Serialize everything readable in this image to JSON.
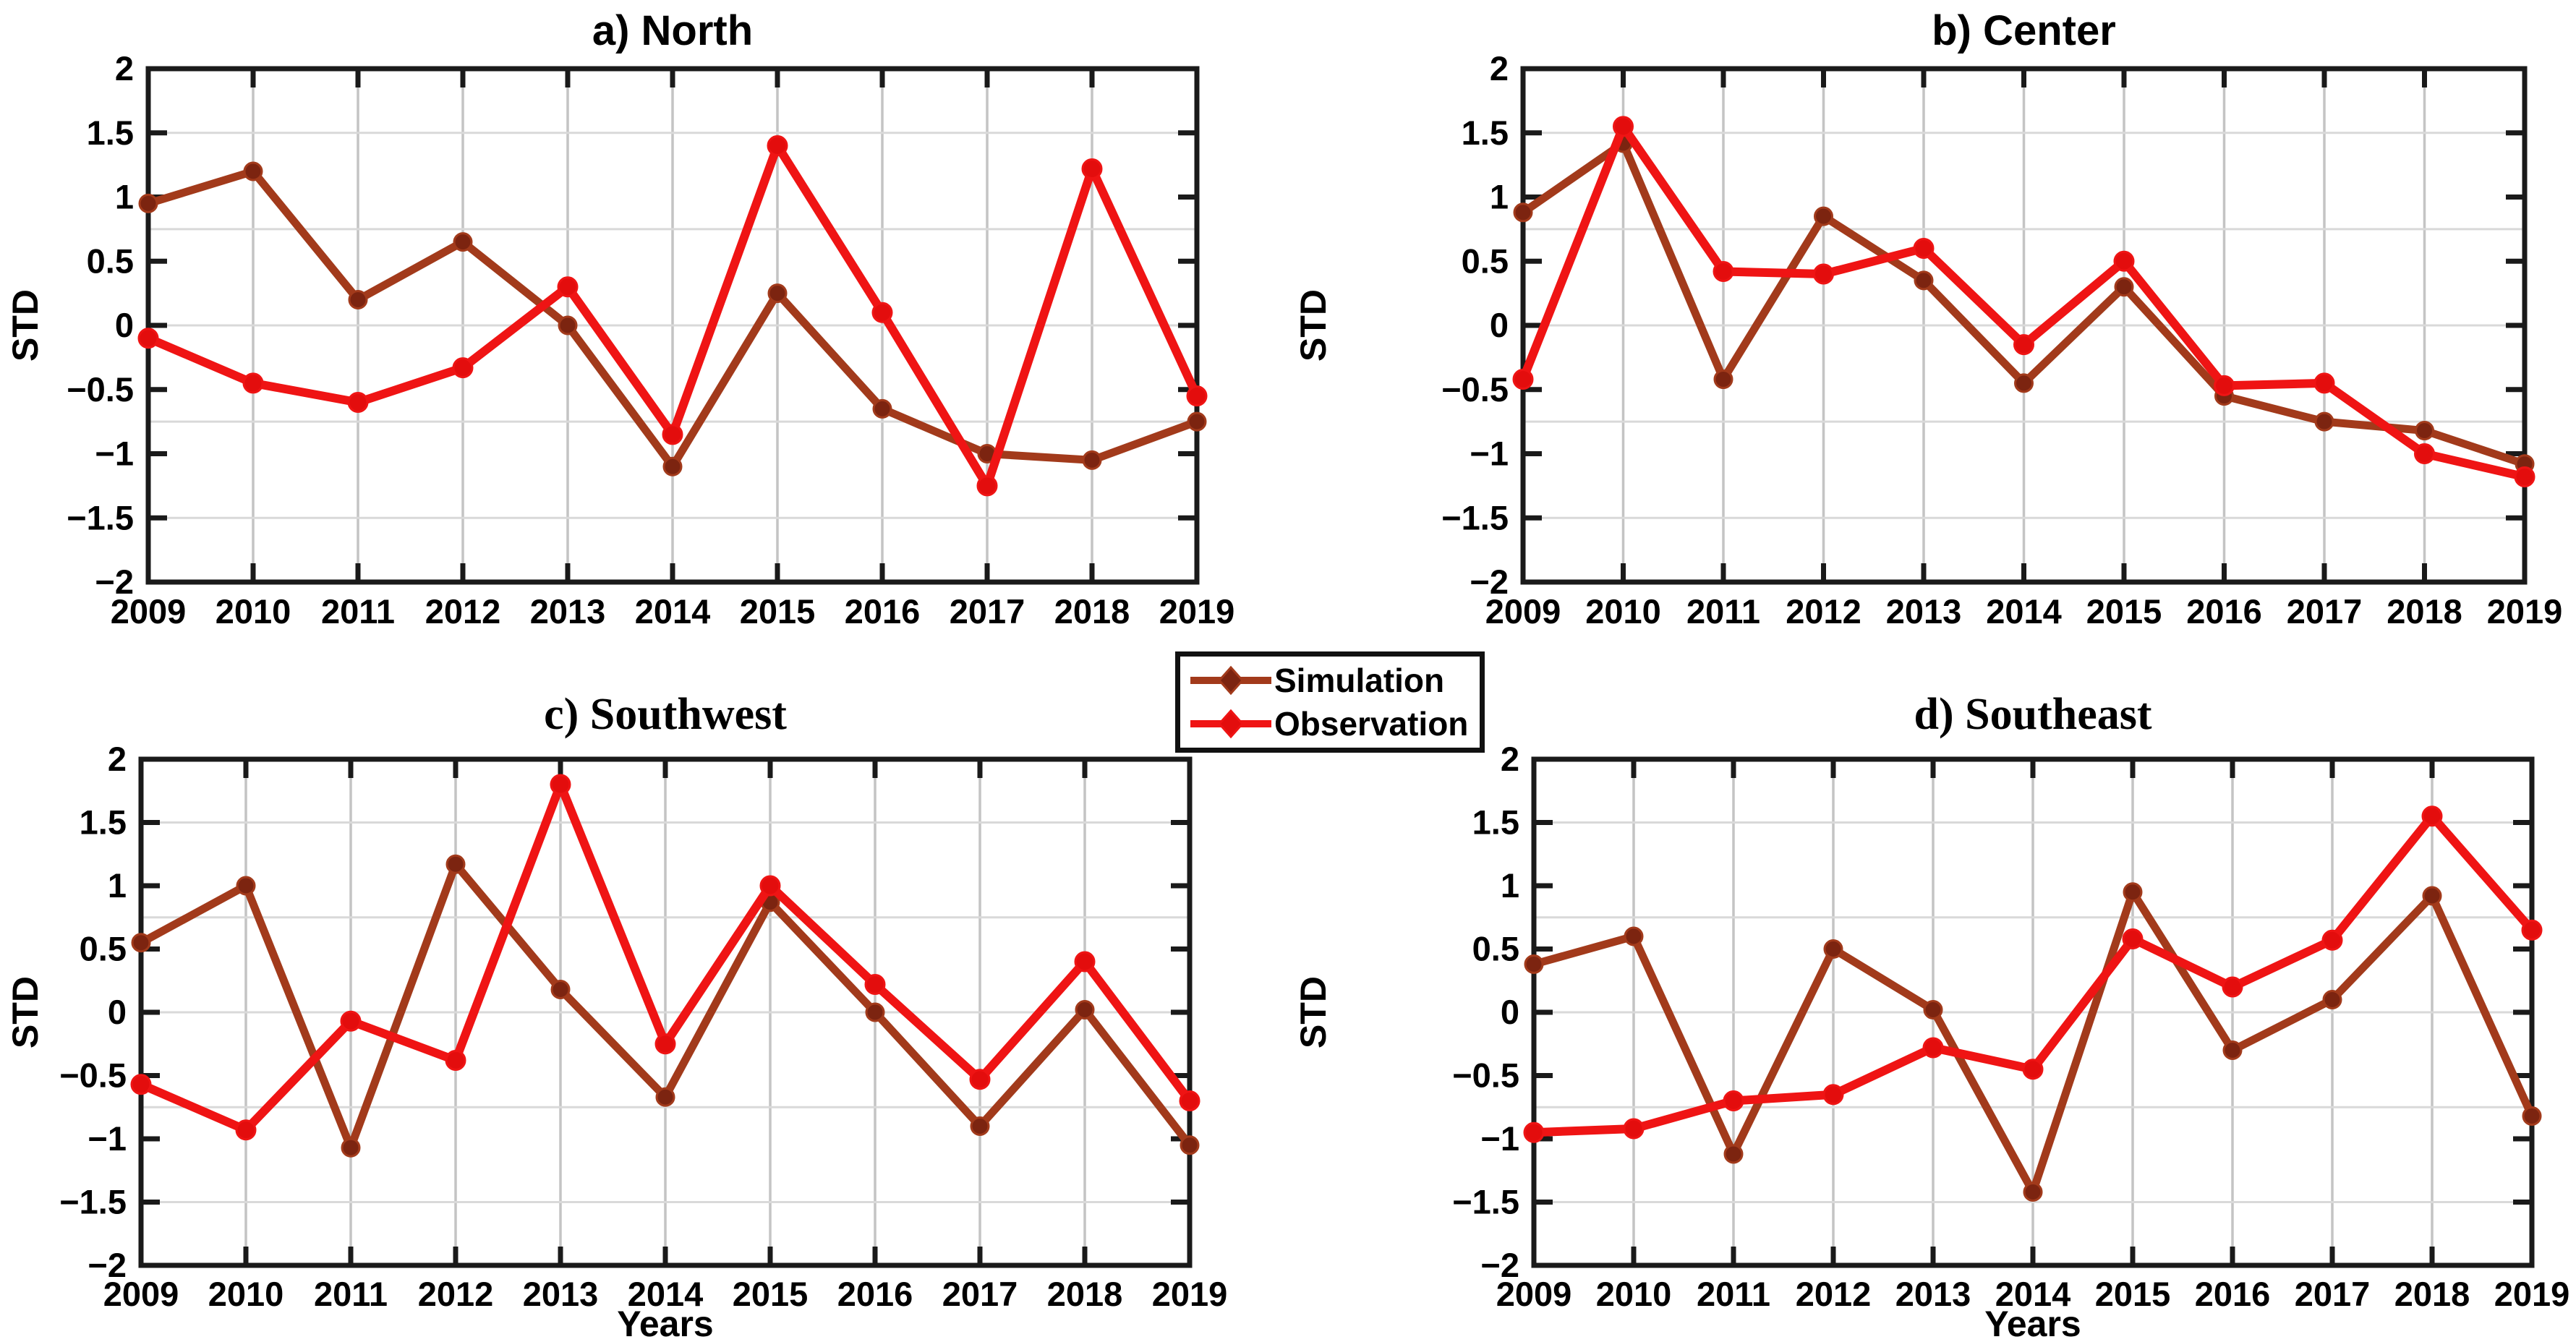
{
  "figure": {
    "background": "#ffffff",
    "axis_color": "#1a1a1a",
    "grid_color_vertical": "#c4c4c4",
    "grid_color_horizontal": "#d9d9d9",
    "shared_ylabel": "STD",
    "shared_xlabel": "Years"
  },
  "legend": {
    "items": [
      {
        "label": "Simulation",
        "line_color": "#a23a1b",
        "marker_color": "#7c2410"
      },
      {
        "label": "Observation",
        "line_color": "#ef1414",
        "marker_color": "#e30d0d"
      }
    ]
  },
  "chart_data": [
    {
      "id": "north",
      "type": "line",
      "title": "a) North",
      "xlabel": "",
      "ylabel": "STD",
      "x": [
        2009,
        2010,
        2011,
        2012,
        2013,
        2014,
        2015,
        2016,
        2017,
        2018,
        2019
      ],
      "ylim": [
        -2,
        2
      ],
      "yticks": [
        2,
        1.5,
        1,
        0.5,
        0,
        -0.5,
        -1,
        -1.5,
        -2
      ],
      "grid_y": [
        1.5,
        0.75,
        0,
        -0.75,
        -1.5
      ],
      "grid": "on",
      "series": [
        {
          "name": "Simulation",
          "values": [
            0.95,
            1.2,
            0.2,
            0.65,
            0.0,
            -1.1,
            0.25,
            -0.65,
            -1.0,
            -1.05,
            -0.75
          ]
        },
        {
          "name": "Observation",
          "values": [
            -0.1,
            -0.45,
            -0.6,
            -0.33,
            0.3,
            -0.85,
            1.4,
            0.1,
            -1.25,
            1.22,
            -0.55
          ]
        }
      ]
    },
    {
      "id": "center",
      "type": "line",
      "title": "b) Center",
      "xlabel": "",
      "ylabel": "STD",
      "x": [
        2009,
        2010,
        2011,
        2012,
        2013,
        2014,
        2015,
        2016,
        2017,
        2018,
        2019
      ],
      "ylim": [
        -2,
        2
      ],
      "yticks": [
        2,
        1.5,
        1,
        0.5,
        0,
        -0.5,
        -1,
        -1.5,
        -2
      ],
      "grid_y": [
        1.5,
        0.75,
        0,
        -0.75,
        -1.5
      ],
      "grid": "on",
      "series": [
        {
          "name": "Simulation",
          "values": [
            0.88,
            1.42,
            -0.42,
            0.85,
            0.35,
            -0.45,
            0.3,
            -0.55,
            -0.75,
            -0.82,
            -1.08
          ]
        },
        {
          "name": "Observation",
          "values": [
            -0.42,
            1.55,
            0.42,
            0.4,
            0.6,
            -0.15,
            0.5,
            -0.47,
            -0.45,
            -1.0,
            -1.18
          ]
        }
      ]
    },
    {
      "id": "southwest",
      "type": "line",
      "title": "c)  Southwest",
      "xlabel": "Years",
      "ylabel": "STD",
      "x": [
        2009,
        2010,
        2011,
        2012,
        2013,
        2014,
        2015,
        2016,
        2017,
        2018,
        2019
      ],
      "ylim": [
        -2,
        2
      ],
      "yticks": [
        2,
        1.5,
        1,
        0.5,
        0,
        -0.5,
        -1,
        -1.5,
        -2
      ],
      "grid_y": [
        1.5,
        0.75,
        0,
        -0.75,
        -1.5
      ],
      "grid": "on",
      "series": [
        {
          "name": "Simulation",
          "values": [
            0.55,
            1.0,
            -1.07,
            1.17,
            0.18,
            -0.67,
            0.87,
            0.0,
            -0.9,
            0.02,
            -1.05
          ]
        },
        {
          "name": "Observation",
          "values": [
            -0.57,
            -0.93,
            -0.07,
            -0.38,
            1.8,
            -0.25,
            1.0,
            0.22,
            -0.53,
            0.4,
            -0.7
          ]
        }
      ]
    },
    {
      "id": "southeast",
      "type": "line",
      "title": "d)  Southeast",
      "xlabel": "Years",
      "ylabel": "STD",
      "x": [
        2009,
        2010,
        2011,
        2012,
        2013,
        2014,
        2015,
        2016,
        2017,
        2018,
        2019
      ],
      "ylim": [
        -2,
        2
      ],
      "yticks": [
        2,
        1.5,
        1,
        0.5,
        0,
        -0.5,
        -1,
        -1.5,
        -2
      ],
      "grid_y": [
        1.5,
        0.75,
        0,
        -0.75,
        -1.5
      ],
      "grid": "on",
      "series": [
        {
          "name": "Simulation",
          "values": [
            0.38,
            0.6,
            -1.12,
            0.5,
            0.02,
            -1.42,
            0.95,
            -0.3,
            0.1,
            0.92,
            -0.82
          ]
        },
        {
          "name": "Observation",
          "values": [
            -0.95,
            -0.92,
            -0.7,
            -0.65,
            -0.28,
            -0.45,
            0.58,
            0.2,
            0.57,
            1.55,
            0.65
          ]
        }
      ]
    }
  ]
}
